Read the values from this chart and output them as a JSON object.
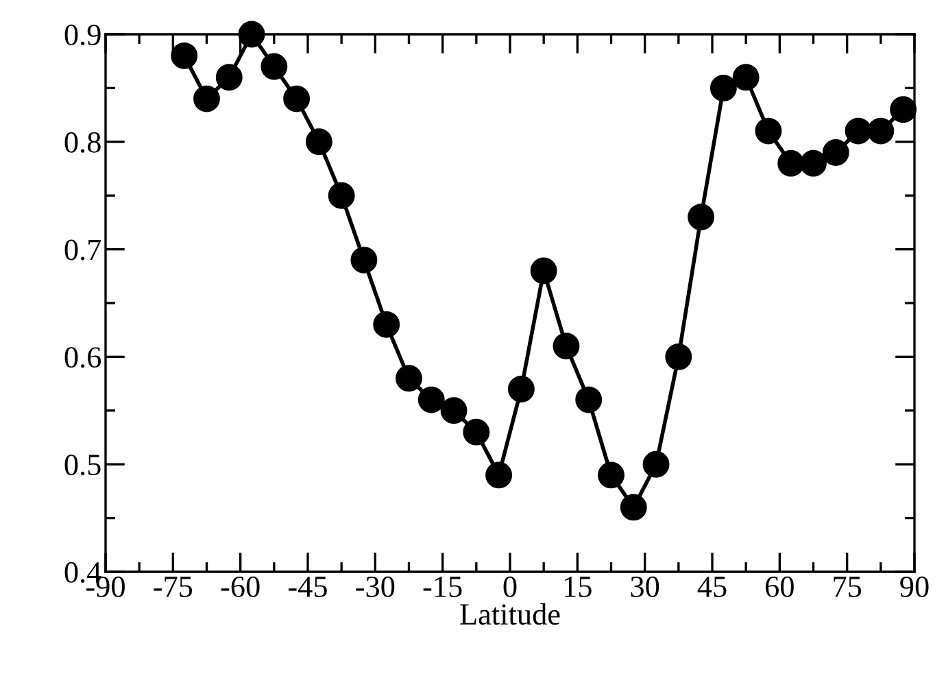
{
  "chart_data": {
    "type": "line",
    "xlabel": "Latitude",
    "x": [
      -72.5,
      -67.5,
      -62.5,
      -57.5,
      -52.5,
      -47.5,
      -42.5,
      -37.5,
      -32.5,
      -27.5,
      -22.5,
      -17.5,
      -12.5,
      -7.5,
      -2.5,
      2.5,
      7.5,
      12.5,
      17.5,
      22.5,
      27.5,
      32.5,
      37.5,
      42.5,
      47.5,
      52.5,
      57.5,
      62.5,
      67.5,
      72.5,
      77.5,
      82.5,
      87.5
    ],
    "series": [
      {
        "color": "#000000",
        "values": [
          0.88,
          0.84,
          0.86,
          0.9,
          0.87,
          0.84,
          0.8,
          0.75,
          0.69,
          0.63,
          0.58,
          0.56,
          0.55,
          0.53,
          0.49,
          0.57,
          0.68,
          0.61,
          0.56,
          0.49,
          0.46,
          0.5,
          0.6,
          0.73,
          0.85,
          0.86,
          0.81,
          0.78,
          0.78,
          0.79,
          0.81,
          0.81,
          0.83
        ]
      }
    ],
    "xlim": [
      -90,
      90
    ],
    "xticks": [
      -90,
      -75,
      -60,
      -45,
      -30,
      -15,
      0,
      15,
      30,
      45,
      60,
      75,
      90
    ],
    "ylim": [
      0.4,
      0.9
    ],
    "yticks": [
      0.4,
      0.5,
      0.6,
      0.7,
      0.8,
      0.9
    ],
    "marker": "circle",
    "line_style": "solid",
    "grid": false
  }
}
